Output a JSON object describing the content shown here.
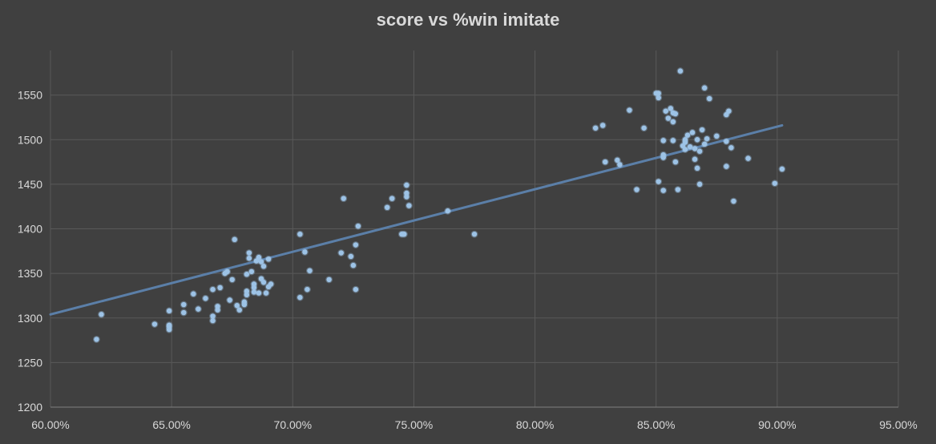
{
  "chart_data": {
    "type": "scatter",
    "title": "score vs %win imitate",
    "xlabel": "",
    "ylabel": "",
    "xlim": [
      0.6,
      0.95
    ],
    "ylim": [
      1200,
      1600
    ],
    "x_ticks": [
      0.6,
      0.65,
      0.7,
      0.75,
      0.8,
      0.85,
      0.9,
      0.95
    ],
    "x_tick_labels": [
      "60.00%",
      "65.00%",
      "70.00%",
      "75.00%",
      "80.00%",
      "85.00%",
      "90.00%",
      "95.00%"
    ],
    "y_ticks": [
      1200,
      1250,
      1300,
      1350,
      1400,
      1450,
      1500,
      1550
    ],
    "y_tick_labels": [
      "1200",
      "1250",
      "1300",
      "1350",
      "1400",
      "1450",
      "1500",
      "1550"
    ],
    "grid": true,
    "legend": "none",
    "colors": {
      "background": "#404040",
      "grid": "#595959",
      "point": "#9dc3e6",
      "trendline": "#5b7fa8",
      "text": "#d9d9d9"
    },
    "trendline": {
      "type": "linear",
      "x": [
        0.6,
        0.902
      ],
      "y": [
        1304,
        1516
      ]
    },
    "series": [
      {
        "points": [
          [
            0.619,
            1276
          ],
          [
            0.621,
            1304
          ],
          [
            0.643,
            1293
          ],
          [
            0.649,
            1308
          ],
          [
            0.649,
            1292
          ],
          [
            0.649,
            1290
          ],
          [
            0.649,
            1287
          ],
          [
            0.655,
            1315
          ],
          [
            0.655,
            1306
          ],
          [
            0.659,
            1327
          ],
          [
            0.661,
            1310
          ],
          [
            0.664,
            1322
          ],
          [
            0.667,
            1332
          ],
          [
            0.667,
            1302
          ],
          [
            0.667,
            1297
          ],
          [
            0.669,
            1313
          ],
          [
            0.669,
            1309
          ],
          [
            0.67,
            1334
          ],
          [
            0.672,
            1350
          ],
          [
            0.673,
            1352
          ],
          [
            0.674,
            1320
          ],
          [
            0.675,
            1343
          ],
          [
            0.676,
            1388
          ],
          [
            0.677,
            1314
          ],
          [
            0.678,
            1309
          ],
          [
            0.68,
            1315
          ],
          [
            0.68,
            1318
          ],
          [
            0.681,
            1326
          ],
          [
            0.681,
            1330
          ],
          [
            0.681,
            1349
          ],
          [
            0.682,
            1373
          ],
          [
            0.682,
            1367
          ],
          [
            0.683,
            1352
          ],
          [
            0.684,
            1338
          ],
          [
            0.684,
            1334
          ],
          [
            0.684,
            1329
          ],
          [
            0.685,
            1364
          ],
          [
            0.686,
            1368
          ],
          [
            0.686,
            1328
          ],
          [
            0.687,
            1363
          ],
          [
            0.687,
            1344
          ],
          [
            0.688,
            1358
          ],
          [
            0.688,
            1340
          ],
          [
            0.689,
            1328
          ],
          [
            0.69,
            1366
          ],
          [
            0.69,
            1335
          ],
          [
            0.691,
            1338
          ],
          [
            0.703,
            1394
          ],
          [
            0.703,
            1323
          ],
          [
            0.705,
            1374
          ],
          [
            0.706,
            1332
          ],
          [
            0.707,
            1353
          ],
          [
            0.715,
            1343
          ],
          [
            0.72,
            1373
          ],
          [
            0.721,
            1434
          ],
          [
            0.724,
            1369
          ],
          [
            0.725,
            1359
          ],
          [
            0.726,
            1382
          ],
          [
            0.726,
            1332
          ],
          [
            0.727,
            1403
          ],
          [
            0.739,
            1424
          ],
          [
            0.741,
            1434
          ],
          [
            0.745,
            1394
          ],
          [
            0.746,
            1394
          ],
          [
            0.747,
            1436
          ],
          [
            0.747,
            1449
          ],
          [
            0.747,
            1440
          ],
          [
            0.748,
            1426
          ],
          [
            0.764,
            1420
          ],
          [
            0.775,
            1394
          ],
          [
            0.825,
            1513
          ],
          [
            0.828,
            1516
          ],
          [
            0.829,
            1475
          ],
          [
            0.834,
            1477
          ],
          [
            0.835,
            1472
          ],
          [
            0.839,
            1533
          ],
          [
            0.842,
            1444
          ],
          [
            0.845,
            1513
          ],
          [
            0.85,
            1552
          ],
          [
            0.851,
            1552
          ],
          [
            0.851,
            1547
          ],
          [
            0.851,
            1453
          ],
          [
            0.853,
            1443
          ],
          [
            0.853,
            1480
          ],
          [
            0.853,
            1483
          ],
          [
            0.853,
            1499
          ],
          [
            0.854,
            1532
          ],
          [
            0.855,
            1524
          ],
          [
            0.856,
            1535
          ],
          [
            0.857,
            1530
          ],
          [
            0.857,
            1520
          ],
          [
            0.857,
            1499
          ],
          [
            0.858,
            1475
          ],
          [
            0.858,
            1529
          ],
          [
            0.859,
            1444
          ],
          [
            0.86,
            1577
          ],
          [
            0.861,
            1493
          ],
          [
            0.862,
            1497
          ],
          [
            0.862,
            1500
          ],
          [
            0.862,
            1489
          ],
          [
            0.863,
            1505
          ],
          [
            0.864,
            1492
          ],
          [
            0.865,
            1508
          ],
          [
            0.866,
            1490
          ],
          [
            0.866,
            1478
          ],
          [
            0.867,
            1468
          ],
          [
            0.867,
            1500
          ],
          [
            0.868,
            1487
          ],
          [
            0.868,
            1450
          ],
          [
            0.869,
            1511
          ],
          [
            0.87,
            1558
          ],
          [
            0.87,
            1495
          ],
          [
            0.871,
            1501
          ],
          [
            0.872,
            1546
          ],
          [
            0.875,
            1504
          ],
          [
            0.879,
            1528
          ],
          [
            0.879,
            1498
          ],
          [
            0.879,
            1470
          ],
          [
            0.88,
            1532
          ],
          [
            0.881,
            1491
          ],
          [
            0.882,
            1431
          ],
          [
            0.888,
            1479
          ],
          [
            0.899,
            1451
          ],
          [
            0.902,
            1467
          ]
        ]
      }
    ]
  }
}
